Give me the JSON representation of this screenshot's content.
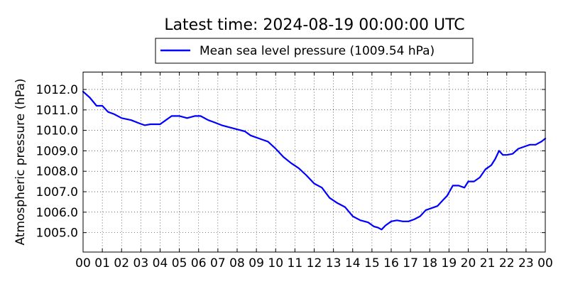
{
  "chart_data": {
    "type": "line",
    "title": "Latest time: 2024-08-19 00:00:00 UTC",
    "xlabel": "",
    "ylabel": "Atmospheric pressure (hPa)",
    "xlim": [
      0,
      24
    ],
    "ylim": [
      1004.05,
      1012.85
    ],
    "x_tick_values": [
      0,
      1,
      2,
      3,
      4,
      5,
      6,
      7,
      8,
      9,
      10,
      11,
      12,
      13,
      14,
      15,
      16,
      17,
      18,
      19,
      20,
      21,
      22,
      23,
      24
    ],
    "x_tick_labels": [
      "00",
      "01",
      "02",
      "03",
      "04",
      "05",
      "06",
      "07",
      "08",
      "09",
      "10",
      "11",
      "12",
      "13",
      "14",
      "15",
      "16",
      "17",
      "18",
      "19",
      "20",
      "21",
      "22",
      "23",
      "00"
    ],
    "y_tick_values": [
      1005.0,
      1006.0,
      1007.0,
      1008.0,
      1009.0,
      1010.0,
      1011.0,
      1012.0
    ],
    "y_tick_labels": [
      "1005.0",
      "1006.0",
      "1007.0",
      "1008.0",
      "1009.0",
      "1010.0",
      "1011.0",
      "1012.0"
    ],
    "grid": true,
    "legend_position": "top-center",
    "series": [
      {
        "name": "Mean sea level pressure (1009.54 hPa)",
        "color": "#0000ff",
        "x": [
          0,
          0.35,
          0.7,
          1.0,
          1.3,
          1.6,
          2.0,
          2.5,
          2.9,
          3.2,
          3.5,
          4.0,
          4.3,
          4.6,
          5.0,
          5.4,
          5.8,
          6.1,
          6.5,
          6.8,
          7.2,
          7.6,
          8.0,
          8.4,
          8.7,
          9.0,
          9.3,
          9.6,
          10.0,
          10.4,
          10.8,
          11.2,
          11.6,
          12.0,
          12.4,
          12.8,
          13.2,
          13.6,
          14.0,
          14.4,
          14.8,
          15.1,
          15.3,
          15.5,
          15.7,
          16.0,
          16.3,
          16.6,
          16.9,
          17.2,
          17.5,
          17.8,
          18.1,
          18.4,
          18.7,
          18.9,
          19.2,
          19.5,
          19.8,
          20.0,
          20.3,
          20.6,
          20.9,
          21.2,
          21.4,
          21.6,
          21.8,
          22.0,
          22.3,
          22.6,
          22.9,
          23.2,
          23.5,
          23.8,
          24.0
        ],
        "y": [
          1011.9,
          1011.6,
          1011.2,
          1011.2,
          1010.9,
          1010.8,
          1010.6,
          1010.5,
          1010.35,
          1010.25,
          1010.3,
          1010.3,
          1010.5,
          1010.7,
          1010.7,
          1010.6,
          1010.7,
          1010.7,
          1010.5,
          1010.4,
          1010.25,
          1010.15,
          1010.05,
          1009.95,
          1009.75,
          1009.65,
          1009.55,
          1009.45,
          1009.1,
          1008.7,
          1008.4,
          1008.15,
          1007.8,
          1007.4,
          1007.2,
          1006.7,
          1006.45,
          1006.25,
          1005.8,
          1005.6,
          1005.5,
          1005.3,
          1005.25,
          1005.15,
          1005.35,
          1005.55,
          1005.6,
          1005.55,
          1005.55,
          1005.65,
          1005.8,
          1006.1,
          1006.2,
          1006.3,
          1006.6,
          1006.8,
          1007.3,
          1007.3,
          1007.2,
          1007.5,
          1007.5,
          1007.7,
          1008.1,
          1008.3,
          1008.6,
          1009.0,
          1008.8,
          1008.8,
          1008.85,
          1009.1,
          1009.2,
          1009.3,
          1009.3,
          1009.45,
          1009.6
        ]
      }
    ]
  }
}
